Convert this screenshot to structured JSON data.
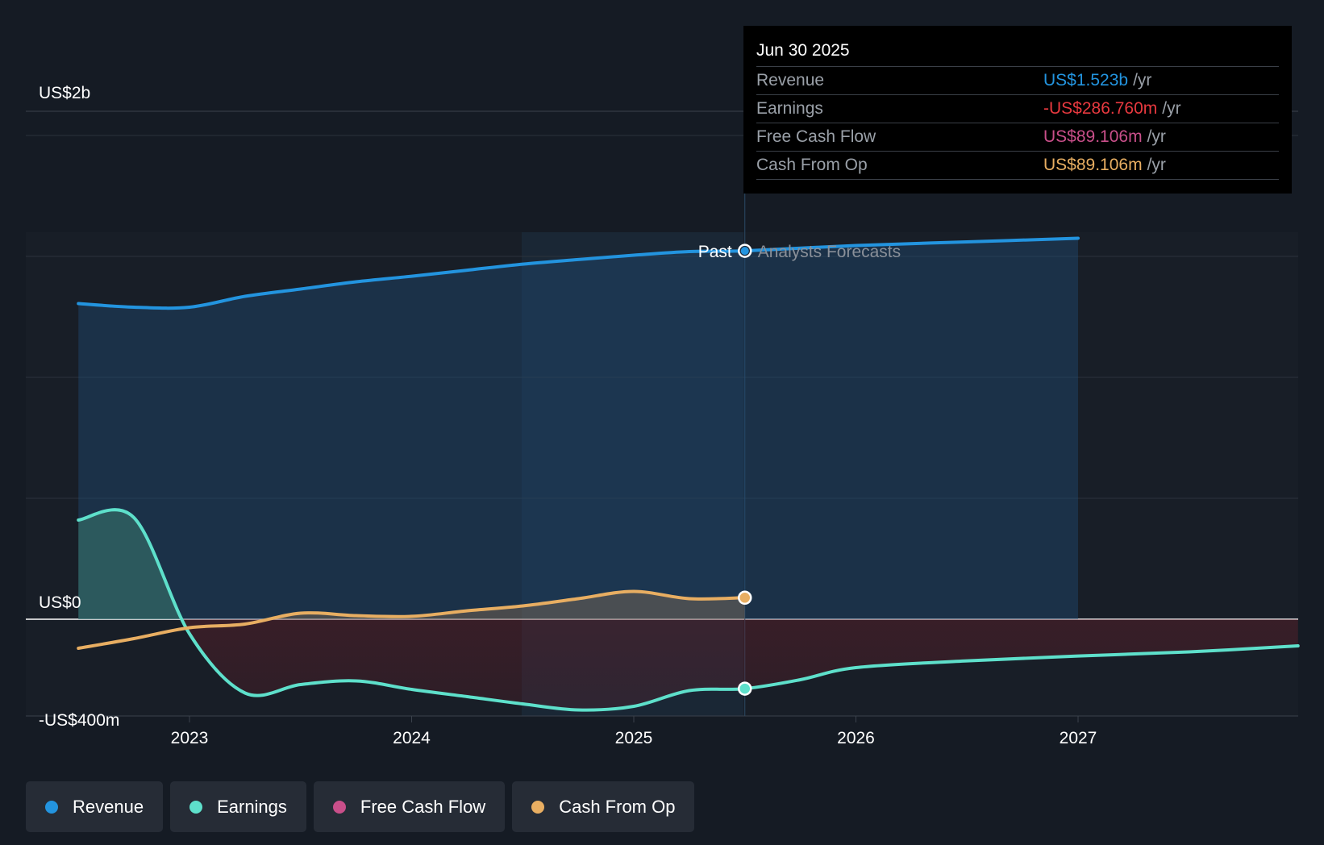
{
  "chart_data": {
    "type": "line",
    "title": "",
    "y_tick_labels": [
      "US$2b",
      "US$0",
      "-US$400m"
    ],
    "x_tick_labels": [
      "2023",
      "2024",
      "2025",
      "2026",
      "2027"
    ],
    "ylim": [
      -400,
      2000
    ],
    "y_unit": "US$ m",
    "past_label": "Past",
    "forecast_label": "Analysts Forecasts",
    "series": [
      {
        "name": "Revenue",
        "color": "#2394df",
        "points": [
          [
            2022.5,
            1305
          ],
          [
            2022.75,
            1290
          ],
          [
            2023.0,
            1290
          ],
          [
            2023.25,
            1335
          ],
          [
            2023.5,
            1365
          ],
          [
            2023.75,
            1395
          ],
          [
            2024.0,
            1418
          ],
          [
            2024.25,
            1443
          ],
          [
            2024.5,
            1468
          ],
          [
            2024.75,
            1487
          ],
          [
            2025.0,
            1505
          ],
          [
            2025.25,
            1520
          ],
          [
            2025.5,
            1523
          ]
        ],
        "forecast": [
          [
            2025.5,
            1523
          ],
          [
            2026.0,
            1545
          ],
          [
            2026.5,
            1560
          ],
          [
            2027.0,
            1575
          ]
        ]
      },
      {
        "name": "Earnings",
        "color": "#5ee0cb",
        "points": [
          [
            2022.5,
            410
          ],
          [
            2022.75,
            420
          ],
          [
            2023.0,
            -60
          ],
          [
            2023.25,
            -305
          ],
          [
            2023.5,
            -270
          ],
          [
            2023.75,
            -255
          ],
          [
            2024.0,
            -290
          ],
          [
            2024.25,
            -320
          ],
          [
            2024.5,
            -350
          ],
          [
            2024.75,
            -375
          ],
          [
            2025.0,
            -360
          ],
          [
            2025.25,
            -295
          ],
          [
            2025.5,
            -287
          ]
        ],
        "forecast": [
          [
            2025.5,
            -287
          ],
          [
            2025.75,
            -250
          ],
          [
            2026.0,
            -200
          ],
          [
            2026.5,
            -172
          ],
          [
            2027.0,
            -152
          ],
          [
            2027.5,
            -135
          ],
          [
            2027.99,
            -110
          ]
        ]
      },
      {
        "name": "Free Cash Flow",
        "color": "#c94f8a",
        "points": []
      },
      {
        "name": "Cash From Op",
        "color": "#e8ae62",
        "points": [
          [
            2022.5,
            -120
          ],
          [
            2022.75,
            -80
          ],
          [
            2023.0,
            -35
          ],
          [
            2023.25,
            -20
          ],
          [
            2023.5,
            25
          ],
          [
            2023.75,
            15
          ],
          [
            2024.0,
            12
          ],
          [
            2024.25,
            35
          ],
          [
            2024.5,
            55
          ],
          [
            2024.75,
            85
          ],
          [
            2025.0,
            115
          ],
          [
            2025.25,
            85
          ],
          [
            2025.5,
            89
          ]
        ]
      }
    ],
    "tooltip": {
      "date": "Jun 30 2025",
      "rows": [
        {
          "label": "Revenue",
          "value": "US$1.523b",
          "unit": "/yr",
          "color": "#2394df"
        },
        {
          "label": "Earnings",
          "value": "-US$286.760m",
          "unit": "/yr",
          "color": "#e8393f"
        },
        {
          "label": "Free Cash Flow",
          "value": "US$89.106m",
          "unit": "/yr",
          "color": "#c94f8a"
        },
        {
          "label": "Cash From Op",
          "value": "US$89.106m",
          "unit": "/yr",
          "color": "#e8ae62"
        }
      ]
    }
  },
  "legend": [
    {
      "label": "Revenue",
      "color": "#2394df"
    },
    {
      "label": "Earnings",
      "color": "#5ee0cb"
    },
    {
      "label": "Free Cash Flow",
      "color": "#c94f8a"
    },
    {
      "label": "Cash From Op",
      "color": "#e8ae62"
    }
  ]
}
